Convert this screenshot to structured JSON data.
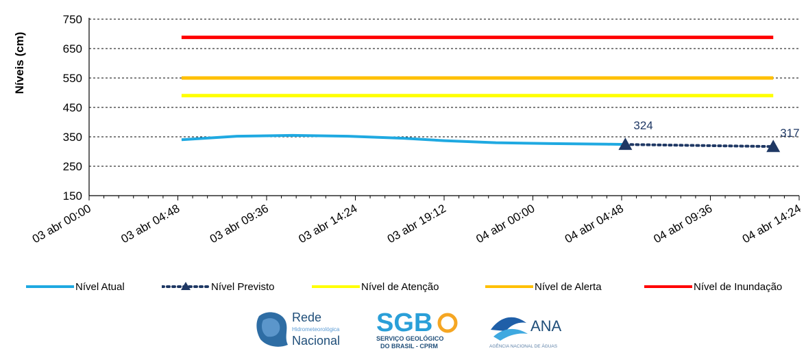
{
  "chart_data": {
    "type": "line",
    "ylabel": "Níveis  (cm)",
    "ylim": [
      150,
      750
    ],
    "yticks": [
      150,
      250,
      350,
      450,
      550,
      650,
      750
    ],
    "x_tick_labels": [
      "03 abr 00:00",
      "03 abr 04:48",
      "03 abr 09:36",
      "03 abr 14:24",
      "03 abr 19:12",
      "04 abr 00:00",
      "04 abr 04:48",
      "04 abr 09:36",
      "04 abr 14:24"
    ],
    "grid": "horizontal dashed",
    "legend_position": "bottom",
    "series": [
      {
        "name": "Nível Atual",
        "color": "#1FA9E1",
        "style": "solid",
        "x": [
          "03 abr 05:00",
          "03 abr 08:00",
          "03 abr 11:00",
          "03 abr 14:00",
          "03 abr 17:00",
          "03 abr 19:12",
          "03 abr 22:00",
          "04 abr 01:00",
          "04 abr 04:00",
          "04 abr 05:00"
        ],
        "values": [
          340,
          352,
          355,
          352,
          345,
          337,
          330,
          327,
          325,
          324
        ]
      },
      {
        "name": "Nível Previsto",
        "color": "#1F3864",
        "style": "dotted",
        "marker": "triangle",
        "x": [
          "04 abr 05:00",
          "04 abr 13:00"
        ],
        "values": [
          324,
          317
        ],
        "data_labels": [
          "324",
          "317"
        ]
      },
      {
        "name": "Nível de Atenção",
        "color": "#FFFF00",
        "style": "solid",
        "x": [
          "03 abr 05:00",
          "04 abr 13:00"
        ],
        "values": [
          490,
          490
        ]
      },
      {
        "name": "Nível de Alerta",
        "color": "#FFC000",
        "style": "solid",
        "x": [
          "03 abr 05:00",
          "04 abr 13:00"
        ],
        "values": [
          550,
          550
        ]
      },
      {
        "name": "Nível de Inundação",
        "color": "#FF0000",
        "style": "solid",
        "x": [
          "03 abr 05:00",
          "04 abr 13:00"
        ],
        "values": [
          688,
          688
        ]
      }
    ]
  },
  "logos": {
    "rede": {
      "line1": "Rede",
      "line2": "Hidrometeorológica",
      "line3": "Nacional"
    },
    "sgb": {
      "mark": "SGB",
      "line1": "SERVIÇO GEOLÓGICO",
      "line2": "DO BRASIL - CPRM"
    },
    "ana": {
      "mark": "ANA",
      "line1": "AGÊNCIA NACIONAL DE ÁGUAS"
    }
  }
}
